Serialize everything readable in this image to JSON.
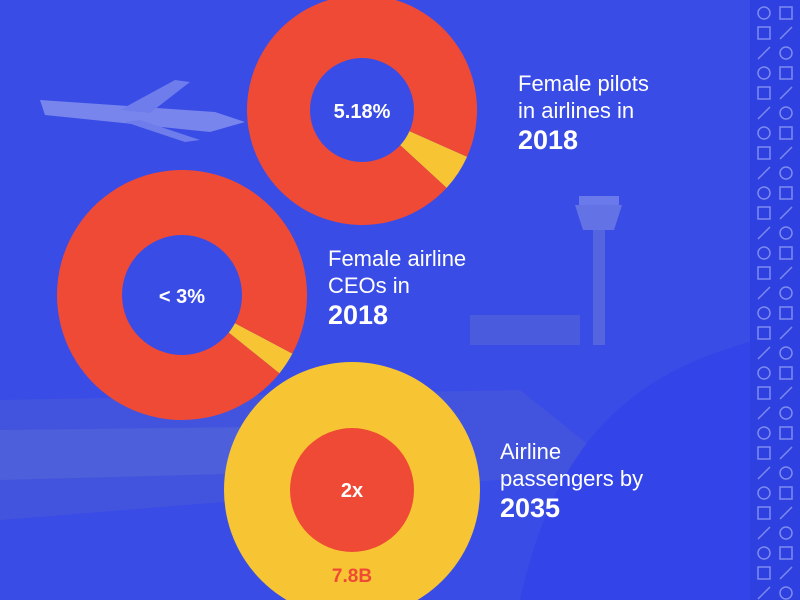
{
  "colors": {
    "background": "#3a4ce6",
    "donut_main": "#ef4a35",
    "donut_slice": "#f7c533",
    "hole": "#3a4ce6",
    "text": "#ffffff"
  },
  "chart_data": [
    {
      "type": "pie",
      "style": "donut",
      "center_label": "5.18%",
      "caption_line1": "Female pilots",
      "caption_line2": "in airlines in",
      "caption_year": "2018",
      "slices": [
        {
          "value": 5.18,
          "color": "#f7c533"
        },
        {
          "value": 94.82,
          "color": "#ef4a35"
        }
      ]
    },
    {
      "type": "pie",
      "style": "donut",
      "center_label": "< 3%",
      "caption_line1": "Female airline",
      "caption_line2": "CEOs in",
      "caption_year": "2018",
      "slices": [
        {
          "value": 3,
          "color": "#f7c533"
        },
        {
          "value": 97,
          "color": "#ef4a35"
        }
      ]
    },
    {
      "type": "pie",
      "style": "nested",
      "center_label": "2x",
      "outer_label": "7.8B",
      "caption_line1": "Airline",
      "caption_line2": "passengers by",
      "caption_year": "2035"
    }
  ]
}
